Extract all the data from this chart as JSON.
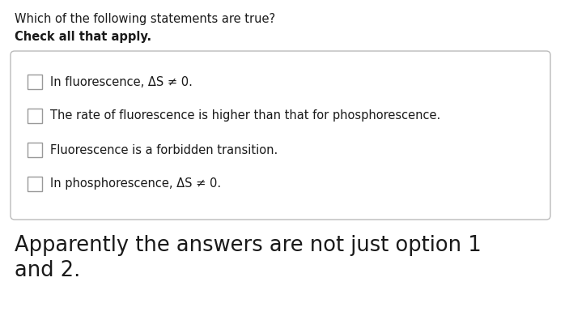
{
  "title_line1": "Which of the following statements are true?",
  "title_line2": "Check all that apply.",
  "options": [
    "In fluorescence, ΔS ≠ 0.",
    "The rate of fluorescence is higher than that for phosphorescence.",
    "Fluorescence is a forbidden transition.",
    "In phosphorescence, ΔS ≠ 0."
  ],
  "footer": "Apparently the answers are not just option 1\nand 2.",
  "bg_color": "#ffffff",
  "text_color": "#1a1a1a",
  "box_edge_color": "#bbbbbb",
  "checkbox_color": "#999999",
  "title1_fontsize": 10.5,
  "title2_fontsize": 10.5,
  "option_fontsize": 10.5,
  "footer_fontsize": 18.5
}
